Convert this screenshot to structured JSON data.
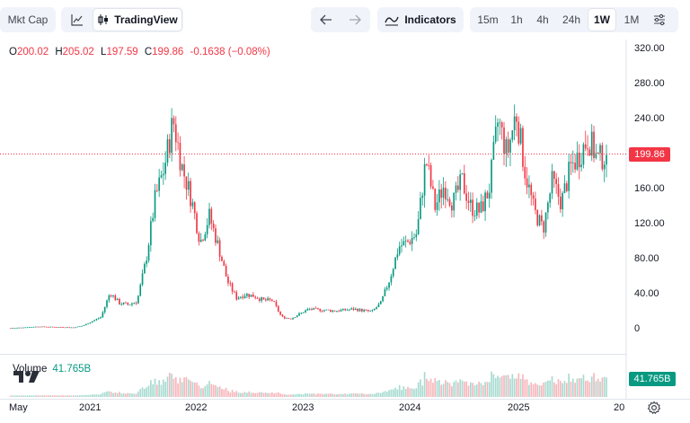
{
  "toolbar": {
    "mkt_cap_label": "Mkt Cap",
    "tradingview_label": "TradingView",
    "indicators_label": "Indicators",
    "timeframes": [
      "15m",
      "1h",
      "4h",
      "24h",
      "1W",
      "1M"
    ],
    "active_timeframe": "1W"
  },
  "ohlc": {
    "o_key": "O",
    "o": "200.02",
    "h_key": "H",
    "h": "205.02",
    "l_key": "L",
    "l": "197.59",
    "c_key": "C",
    "c": "199.86",
    "change": "-0.1638 (−0.08%)"
  },
  "volume": {
    "label": "Volume",
    "value": "41.765B"
  },
  "last_price_tag": "199.86",
  "volume_tag": "41.765B",
  "colors": {
    "up": "#089981",
    "down": "#f23645",
    "up_volume": "#a7dbd1",
    "down_volume": "#f7b6bb"
  },
  "icons": {
    "line_chart": "line-chart-icon",
    "candles": "candles-icon",
    "undo": "undo-arrow-icon",
    "redo": "redo-arrow-icon",
    "indicators": "indicators-icon",
    "settings_sliders": "sliders-icon",
    "gear": "gear-icon",
    "logo": "tradingview-logo-icon"
  },
  "chart_data": {
    "type": "candlestick",
    "interval": "1W",
    "y_axis_labels": [
      "320.00",
      "280.00",
      "240.00",
      "200.00",
      "160.00",
      "120.00",
      "80.00",
      "40.00",
      "0"
    ],
    "ylim": [
      -2,
      325
    ],
    "x_axis_labels": [
      "May",
      "2021",
      "2022",
      "2023",
      "2024",
      "2025",
      "20"
    ],
    "last_close": 199.86,
    "keyframes": [
      [
        "2020-05",
        1.2
      ],
      [
        "2020-08",
        3
      ],
      [
        "2020-10",
        2.5
      ],
      [
        "2020-12",
        2
      ],
      [
        "2021-01",
        4
      ],
      [
        "2021-03",
        14
      ],
      [
        "2021-04",
        42
      ],
      [
        "2021-05",
        30
      ],
      [
        "2021-06",
        28
      ],
      [
        "2021-07",
        32
      ],
      [
        "2021-08",
        80
      ],
      [
        "2021-09",
        150
      ],
      [
        "2021-10",
        185
      ],
      [
        "2021-11",
        240
      ],
      [
        "2021-12",
        185
      ],
      [
        "2022-01",
        150
      ],
      [
        "2022-02",
        100
      ],
      [
        "2022-03",
        130
      ],
      [
        "2022-04",
        95
      ],
      [
        "2022-05",
        55
      ],
      [
        "2022-06",
        36
      ],
      [
        "2022-07",
        40
      ],
      [
        "2022-08",
        38
      ],
      [
        "2022-09",
        33
      ],
      [
        "2022-10",
        33
      ],
      [
        "2022-11",
        14
      ],
      [
        "2022-12",
        12
      ],
      [
        "2023-02",
        23
      ],
      [
        "2023-05",
        21
      ],
      [
        "2023-07",
        23
      ],
      [
        "2023-09",
        20
      ],
      [
        "2023-10",
        30
      ],
      [
        "2023-11",
        58
      ],
      [
        "2023-12",
        95
      ],
      [
        "2024-01",
        100
      ],
      [
        "2024-02",
        110
      ],
      [
        "2024-03",
        195
      ],
      [
        "2024-04",
        140
      ],
      [
        "2024-05",
        165
      ],
      [
        "2024-06",
        145
      ],
      [
        "2024-07",
        170
      ],
      [
        "2024-08",
        140
      ],
      [
        "2024-09",
        135
      ],
      [
        "2024-10",
        160
      ],
      [
        "2024-11",
        240
      ],
      [
        "2024-12",
        200
      ],
      [
        "2025-01",
        250
      ],
      [
        "2025-02",
        180
      ],
      [
        "2025-03",
        135
      ],
      [
        "2025-04",
        115
      ],
      [
        "2025-05",
        170
      ],
      [
        "2025-06",
        145
      ],
      [
        "2025-07",
        185
      ],
      [
        "2025-08",
        200
      ],
      [
        "2025-09",
        220
      ],
      [
        "2025-10",
        195
      ],
      [
        "2025-11",
        199.86
      ]
    ]
  }
}
